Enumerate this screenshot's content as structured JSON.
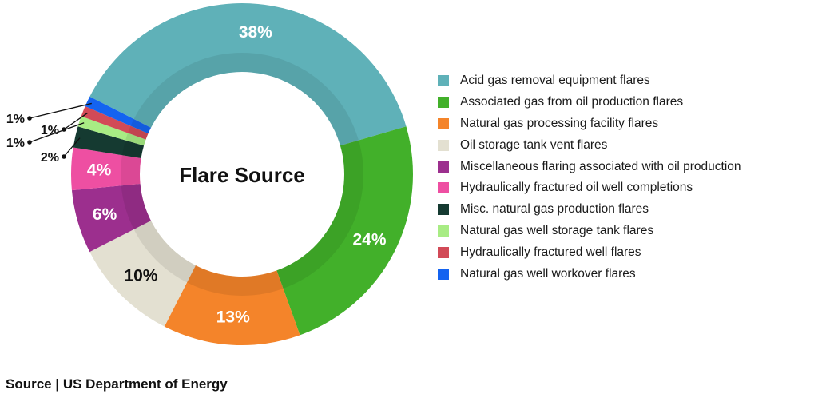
{
  "chart_data": {
    "type": "donut",
    "title": "Flare Source",
    "series": [
      {
        "name": "Acid gas removal equipment flares",
        "value": 38,
        "label": "38%",
        "color": "#5fb1b8"
      },
      {
        "name": "Associated gas from oil production flares",
        "value": 24,
        "label": "24%",
        "color": "#42b02a"
      },
      {
        "name": "Natural gas processing facility flares",
        "value": 13,
        "label": "13%",
        "color": "#f4842a"
      },
      {
        "name": "Oil storage tank vent flares",
        "value": 10,
        "label": "10%",
        "color": "#e3e0d1"
      },
      {
        "name": "Miscellaneous flaring associated with oil production",
        "value": 6,
        "label": "6%",
        "color": "#9c2f8e"
      },
      {
        "name": "Hydraulically fractured oil well completions",
        "value": 4,
        "label": "4%",
        "color": "#ee4fa2"
      },
      {
        "name": "Misc. natural gas production flares",
        "value": 2,
        "label": "2%",
        "color": "#153a31"
      },
      {
        "name": "Natural gas well storage tank flares",
        "value": 1,
        "label": "1%",
        "color": "#a8ec84"
      },
      {
        "name": "Hydraulically fractured well flares",
        "value": 1,
        "label": "1%",
        "color": "#d24a57"
      },
      {
        "name": "Natural gas well workover flares",
        "value": 1,
        "label": "1%",
        "color": "#1463f0"
      }
    ],
    "legend_position": "right"
  },
  "footer": {
    "source": "Source | US Department of Energy"
  }
}
